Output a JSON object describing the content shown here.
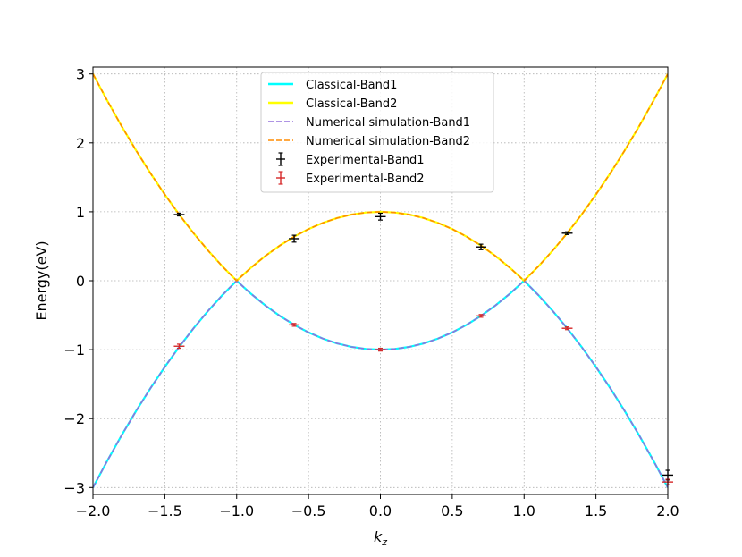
{
  "chart_data": {
    "type": "line",
    "title": "",
    "xlabel": "k",
    "xlabel_sub": "z",
    "ylabel": "Energy(eV)",
    "xlim": [
      -2.0,
      2.0
    ],
    "ylim": [
      -3.1,
      3.1
    ],
    "xticks": [
      -2.0,
      -1.5,
      -1.0,
      -0.5,
      0.0,
      0.5,
      1.0,
      1.5,
      2.0
    ],
    "xtick_labels": [
      "−2.0",
      "−1.5",
      "−1.0",
      "−0.5",
      "0.0",
      "0.5",
      "1.0",
      "1.5",
      "2.0"
    ],
    "yticks": [
      -3,
      -2,
      -1,
      0,
      1,
      2,
      3
    ],
    "ytick_labels": [
      "−3",
      "−2",
      "−1",
      "0",
      "1",
      "2",
      "3"
    ],
    "grid": true,
    "legend_position": "top-center",
    "series": [
      {
        "name": "Classical-Band1",
        "style": "solid",
        "color": "#00ffff",
        "x": [
          -2.0,
          -1.9,
          -1.8,
          -1.7,
          -1.6,
          -1.5,
          -1.4,
          -1.3,
          -1.2,
          -1.1,
          -1.0,
          -0.9,
          -0.8,
          -0.7,
          -0.6,
          -0.5,
          -0.4,
          -0.3,
          -0.2,
          -0.1,
          0.0,
          0.1,
          0.2,
          0.3,
          0.4,
          0.5,
          0.6,
          0.7,
          0.8,
          0.9,
          1.0,
          1.1,
          1.2,
          1.3,
          1.4,
          1.5,
          1.6,
          1.7,
          1.8,
          1.9,
          2.0
        ],
        "y": [
          -3.0,
          -2.61,
          -2.24,
          -1.89,
          -1.56,
          -1.25,
          -0.96,
          -0.69,
          -0.44,
          -0.21,
          0.0,
          -0.19,
          -0.36,
          -0.51,
          -0.64,
          -0.75,
          -0.84,
          -0.91,
          -0.96,
          -0.99,
          -1.0,
          -0.99,
          -0.96,
          -0.91,
          -0.84,
          -0.75,
          -0.64,
          -0.51,
          -0.36,
          -0.19,
          0.0,
          -0.21,
          -0.44,
          -0.69,
          -0.96,
          -1.25,
          -1.56,
          -1.89,
          -2.24,
          -2.61,
          -3.0
        ]
      },
      {
        "name": "Classical-Band2",
        "style": "solid",
        "color": "#ffff00",
        "x": [
          -2.0,
          -1.9,
          -1.8,
          -1.7,
          -1.6,
          -1.5,
          -1.4,
          -1.3,
          -1.2,
          -1.1,
          -1.0,
          -0.9,
          -0.8,
          -0.7,
          -0.6,
          -0.5,
          -0.4,
          -0.3,
          -0.2,
          -0.1,
          0.0,
          0.1,
          0.2,
          0.3,
          0.4,
          0.5,
          0.6,
          0.7,
          0.8,
          0.9,
          1.0,
          1.1,
          1.2,
          1.3,
          1.4,
          1.5,
          1.6,
          1.7,
          1.8,
          1.9,
          2.0
        ],
        "y": [
          3.0,
          2.61,
          2.24,
          1.89,
          1.56,
          1.25,
          0.96,
          0.69,
          0.44,
          0.21,
          0.0,
          0.19,
          0.36,
          0.51,
          0.64,
          0.75,
          0.84,
          0.91,
          0.96,
          0.99,
          1.0,
          0.99,
          0.96,
          0.91,
          0.84,
          0.75,
          0.64,
          0.51,
          0.36,
          0.19,
          0.0,
          0.21,
          0.44,
          0.69,
          0.96,
          1.25,
          1.56,
          1.89,
          2.24,
          2.61,
          3.0
        ]
      },
      {
        "name": "Numerical simulation-Band1",
        "style": "dashed",
        "color": "#9370db",
        "x": [
          -2.0,
          -1.9,
          -1.8,
          -1.7,
          -1.6,
          -1.5,
          -1.4,
          -1.3,
          -1.2,
          -1.1,
          -1.0,
          -0.9,
          -0.8,
          -0.7,
          -0.6,
          -0.5,
          -0.4,
          -0.3,
          -0.2,
          -0.1,
          0.0,
          0.1,
          0.2,
          0.3,
          0.4,
          0.5,
          0.6,
          0.7,
          0.8,
          0.9,
          1.0,
          1.1,
          1.2,
          1.3,
          1.4,
          1.5,
          1.6,
          1.7,
          1.8,
          1.9,
          2.0
        ],
        "y": [
          -3.0,
          -2.61,
          -2.24,
          -1.89,
          -1.56,
          -1.25,
          -0.96,
          -0.69,
          -0.44,
          -0.21,
          0.0,
          -0.19,
          -0.36,
          -0.51,
          -0.64,
          -0.75,
          -0.84,
          -0.91,
          -0.96,
          -0.99,
          -1.0,
          -0.99,
          -0.96,
          -0.91,
          -0.84,
          -0.75,
          -0.64,
          -0.51,
          -0.36,
          -0.19,
          0.0,
          -0.21,
          -0.44,
          -0.69,
          -0.96,
          -1.25,
          -1.56,
          -1.89,
          -2.24,
          -2.61,
          -3.0
        ]
      },
      {
        "name": "Numerical simulation-Band2",
        "style": "dashed",
        "color": "#ff8c00",
        "x": [
          -2.0,
          -1.9,
          -1.8,
          -1.7,
          -1.6,
          -1.5,
          -1.4,
          -1.3,
          -1.2,
          -1.1,
          -1.0,
          -0.9,
          -0.8,
          -0.7,
          -0.6,
          -0.5,
          -0.4,
          -0.3,
          -0.2,
          -0.1,
          0.0,
          0.1,
          0.2,
          0.3,
          0.4,
          0.5,
          0.6,
          0.7,
          0.8,
          0.9,
          1.0,
          1.1,
          1.2,
          1.3,
          1.4,
          1.5,
          1.6,
          1.7,
          1.8,
          1.9,
          2.0
        ],
        "y": [
          3.0,
          2.61,
          2.24,
          1.89,
          1.56,
          1.25,
          0.96,
          0.69,
          0.44,
          0.21,
          0.0,
          0.19,
          0.36,
          0.51,
          0.64,
          0.75,
          0.84,
          0.91,
          0.96,
          0.99,
          1.0,
          0.99,
          0.96,
          0.91,
          0.84,
          0.75,
          0.64,
          0.51,
          0.36,
          0.19,
          0.0,
          0.21,
          0.44,
          0.69,
          0.96,
          1.25,
          1.56,
          1.89,
          2.24,
          2.61,
          3.0
        ]
      }
    ],
    "errorbar_series": [
      {
        "name": "Experimental-Band1",
        "color": "#000000",
        "points": [
          {
            "x": -1.4,
            "y": 0.96,
            "yerr": 0.02
          },
          {
            "x": -0.6,
            "y": 0.61,
            "yerr": 0.05
          },
          {
            "x": 0.0,
            "y": 0.93,
            "yerr": 0.05
          },
          {
            "x": 0.7,
            "y": 0.49,
            "yerr": 0.04
          },
          {
            "x": 1.3,
            "y": 0.69,
            "yerr": 0.02
          },
          {
            "x": 2.0,
            "y": -2.82,
            "yerr": 0.07
          }
        ]
      },
      {
        "name": "Experimental-Band2",
        "color": "#d62728",
        "points": [
          {
            "x": -1.4,
            "y": -0.95,
            "yerr": 0.03
          },
          {
            "x": -0.6,
            "y": -0.64,
            "yerr": 0.02
          },
          {
            "x": 0.0,
            "y": -1.0,
            "yerr": 0.02
          },
          {
            "x": 0.7,
            "y": -0.51,
            "yerr": 0.02
          },
          {
            "x": 1.3,
            "y": -0.69,
            "yerr": 0.02
          },
          {
            "x": 2.0,
            "y": -2.92,
            "yerr": 0.04
          }
        ]
      }
    ],
    "legend": [
      {
        "label": "Classical-Band1",
        "kind": "line",
        "color": "#00ffff",
        "style": "solid"
      },
      {
        "label": "Classical-Band2",
        "kind": "line",
        "color": "#ffff00",
        "style": "solid"
      },
      {
        "label": "Numerical simulation-Band1",
        "kind": "line",
        "color": "#9370db",
        "style": "dashed"
      },
      {
        "label": "Numerical simulation-Band2",
        "kind": "line",
        "color": "#ff8c00",
        "style": "dashed"
      },
      {
        "label": "Experimental-Band1",
        "kind": "errorbar",
        "color": "#000000"
      },
      {
        "label": "Experimental-Band2",
        "kind": "errorbar",
        "color": "#d62728"
      }
    ]
  }
}
